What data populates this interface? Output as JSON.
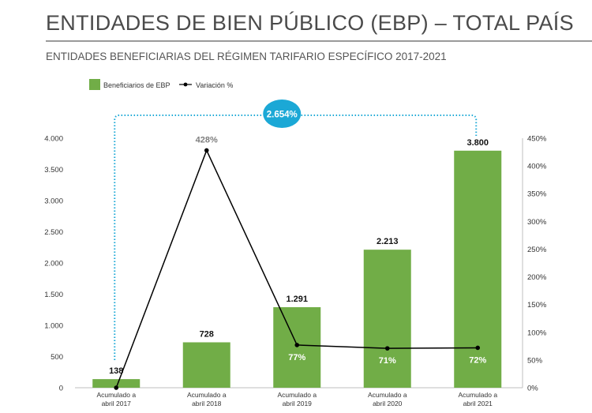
{
  "header": {
    "title": "ENTIDADES DE BIEN PÚBLICO (EBP) – TOTAL PAÍS",
    "subtitle": "ENTIDADES BENEFICIARIAS DEL RÉGIMEN TARIFARIO ESPECÍFICO 2017-2021"
  },
  "chart_data": {
    "type": "bar",
    "categories": [
      [
        "Acumulado a",
        "abril 2017"
      ],
      [
        "Acumulado a",
        "abril 2018"
      ],
      [
        "Acumulado a",
        "abril 2019"
      ],
      [
        "Acumulado a",
        "abril 2020"
      ],
      [
        "Acumulado a",
        "abril 2021"
      ]
    ],
    "series": [
      {
        "name": "Beneficiarios de EBP",
        "type": "bar",
        "axis": "left",
        "color": "#71ad47",
        "values": [
          138,
          728,
          1291,
          2213,
          3800
        ],
        "labels": [
          "138",
          "728",
          "1.291",
          "2.213",
          "3.800"
        ]
      },
      {
        "name": "Variación %",
        "type": "line",
        "axis": "right",
        "color": "#000000",
        "values": [
          0,
          428,
          77,
          71,
          72
        ],
        "labels": [
          null,
          "428%",
          "77%",
          "71%",
          "72%"
        ]
      }
    ],
    "y_left": {
      "range": [
        0,
        4000
      ],
      "ticks": [
        0,
        500,
        1000,
        1500,
        2000,
        2500,
        3000,
        3500,
        4000
      ],
      "tick_labels": [
        "0",
        "500",
        "1.000",
        "1.500",
        "2.000",
        "2.500",
        "3.000",
        "3.500",
        "4.000"
      ]
    },
    "y_right": {
      "range": [
        0,
        450
      ],
      "ticks": [
        0,
        50,
        100,
        150,
        200,
        250,
        300,
        350,
        400,
        450
      ],
      "tick_labels": [
        "0%",
        "50%",
        "100%",
        "150%",
        "200%",
        "250%",
        "300%",
        "350%",
        "400%",
        "450%"
      ]
    },
    "legend_position": "top-left",
    "grid": false,
    "annotation": {
      "text": "2.654%",
      "from_category": 0,
      "to_category": 4,
      "color": "#1ba8d6"
    }
  }
}
